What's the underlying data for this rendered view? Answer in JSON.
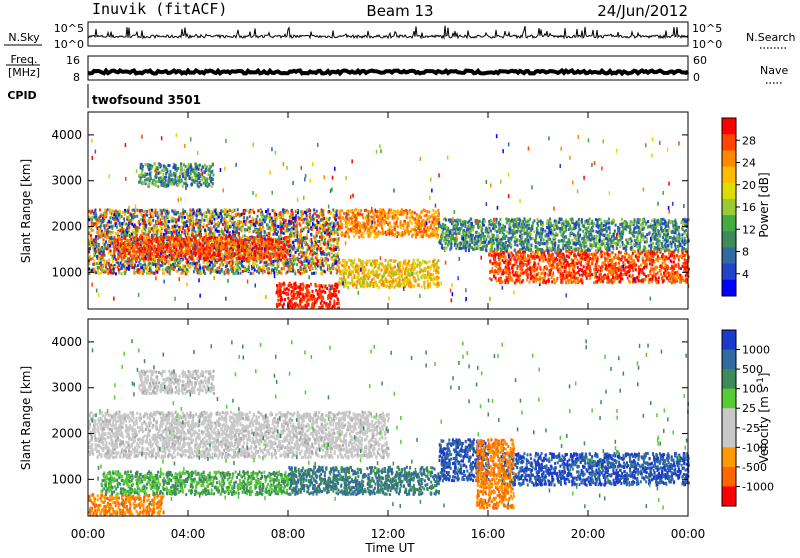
{
  "header": {
    "station": "Inuvik (fitACF)",
    "beam": "Beam 13",
    "date": "24/Jun/2012"
  },
  "left_labels": {
    "nsky": "N.Sky",
    "freq_top": "Freq.",
    "freq_unit": "[MHz]",
    "cpid": "CPID"
  },
  "right_labels": {
    "nsearch": "N.Search",
    "nave": "Nave"
  },
  "cpid_value": "twofsound 3501",
  "noise_panel": {
    "left_ticks": [
      "10^5",
      "10^0"
    ],
    "right_ticks": [
      "10^5",
      "10^0"
    ]
  },
  "freq_panel": {
    "left_ticks": [
      "16",
      "8"
    ],
    "right_ticks": [
      "60",
      "0"
    ]
  },
  "x_axis": {
    "label": "Time UT",
    "ticks": [
      "00:00",
      "04:00",
      "08:00",
      "12:00",
      "16:00",
      "20:00",
      "00:00"
    ]
  },
  "power_colorbar": {
    "label": "Power [dB]",
    "ticks": [
      "28",
      "24",
      "20",
      "16",
      "12",
      "8",
      "4"
    ],
    "colors": [
      "#ff0000",
      "#ff4400",
      "#ff8800",
      "#ffbb00",
      "#dddd00",
      "#99cc33",
      "#44aa44",
      "#3d8a5a",
      "#2f6aa0",
      "#2244cc",
      "#0000ff"
    ]
  },
  "velocity_colorbar": {
    "label_text": "Velocity  [m s",
    "label_sup": "-1",
    "label_close": "]",
    "ticks": [
      "1000",
      "500",
      "100",
      "25",
      "-25",
      "-100",
      "-500",
      "-1000"
    ],
    "colors": [
      "#1a3acc",
      "#2f6aa0",
      "#3d8a5a",
      "#55cc33",
      "#c8c8c8",
      "#c8c8c8",
      "#ff9900",
      "#ff6600",
      "#ff0000"
    ]
  },
  "chart_data": {
    "type": "heatmap",
    "title": "Beam 13",
    "xlabel": "Time UT",
    "ylabel": "Slant Range [km]",
    "xlim": [
      "00:00",
      "24:00"
    ],
    "ylim": [
      200,
      4500
    ],
    "y_ticks": [
      1000,
      2000,
      3000,
      4000
    ],
    "panels": [
      {
        "name": "Power",
        "unit": "dB",
        "colorbar_ticks": [
          4,
          8,
          12,
          16,
          20,
          24,
          28
        ],
        "regions": [
          {
            "t0": 0.0,
            "t1": 10.0,
            "r0": 1000,
            "r1": 2400,
            "level": "mixed 8-20"
          },
          {
            "t0": 1.0,
            "t1": 8.0,
            "r0": 1300,
            "r1": 1800,
            "level": "24-28"
          },
          {
            "t0": 7.5,
            "t1": 10.0,
            "r0": 250,
            "r1": 800,
            "level": "28"
          },
          {
            "t0": 10.0,
            "t1": 14.0,
            "r0": 1800,
            "r1": 2400,
            "level": "20-24"
          },
          {
            "t0": 10.0,
            "t1": 14.0,
            "r0": 700,
            "r1": 1300,
            "level": "16-24"
          },
          {
            "t0": 16.0,
            "t1": 24.0,
            "r0": 800,
            "r1": 1500,
            "level": "24-28"
          },
          {
            "t0": 14.0,
            "t1": 24.0,
            "r0": 1500,
            "r1": 2200,
            "level": "8-16"
          },
          {
            "t0": 2.0,
            "t1": 5.0,
            "r0": 2900,
            "r1": 3400,
            "level": "8-16"
          }
        ]
      },
      {
        "name": "Velocity",
        "unit": "m s-1",
        "colorbar_ticks": [
          1000,
          500,
          100,
          25,
          -25,
          -100,
          -500,
          -1000
        ],
        "regions": [
          {
            "t0": 0.0,
            "t1": 12.0,
            "r0": 1500,
            "r1": 2500,
            "level": "-25 to 25 (ground scatter)"
          },
          {
            "t0": 0.0,
            "t1": 3.0,
            "r0": 250,
            "r1": 700,
            "level": "-100 to -500"
          },
          {
            "t0": 0.5,
            "t1": 8.0,
            "r0": 700,
            "r1": 1200,
            "level": "25-100"
          },
          {
            "t0": 8.0,
            "t1": 14.0,
            "r0": 700,
            "r1": 1300,
            "level": "100-500"
          },
          {
            "t0": 14.0,
            "t1": 16.0,
            "r0": 1000,
            "r1": 1900,
            "level": "500-1000"
          },
          {
            "t0": 16.5,
            "t1": 24.0,
            "r0": 900,
            "r1": 1600,
            "level": "500-1000"
          },
          {
            "t0": 15.5,
            "t1": 17.0,
            "r0": 400,
            "r1": 1900,
            "level": "-100 to -500"
          },
          {
            "t0": 2.0,
            "t1": 5.0,
            "r0": 2900,
            "r1": 3400,
            "level": "-25 to 25"
          }
        ]
      }
    ]
  }
}
